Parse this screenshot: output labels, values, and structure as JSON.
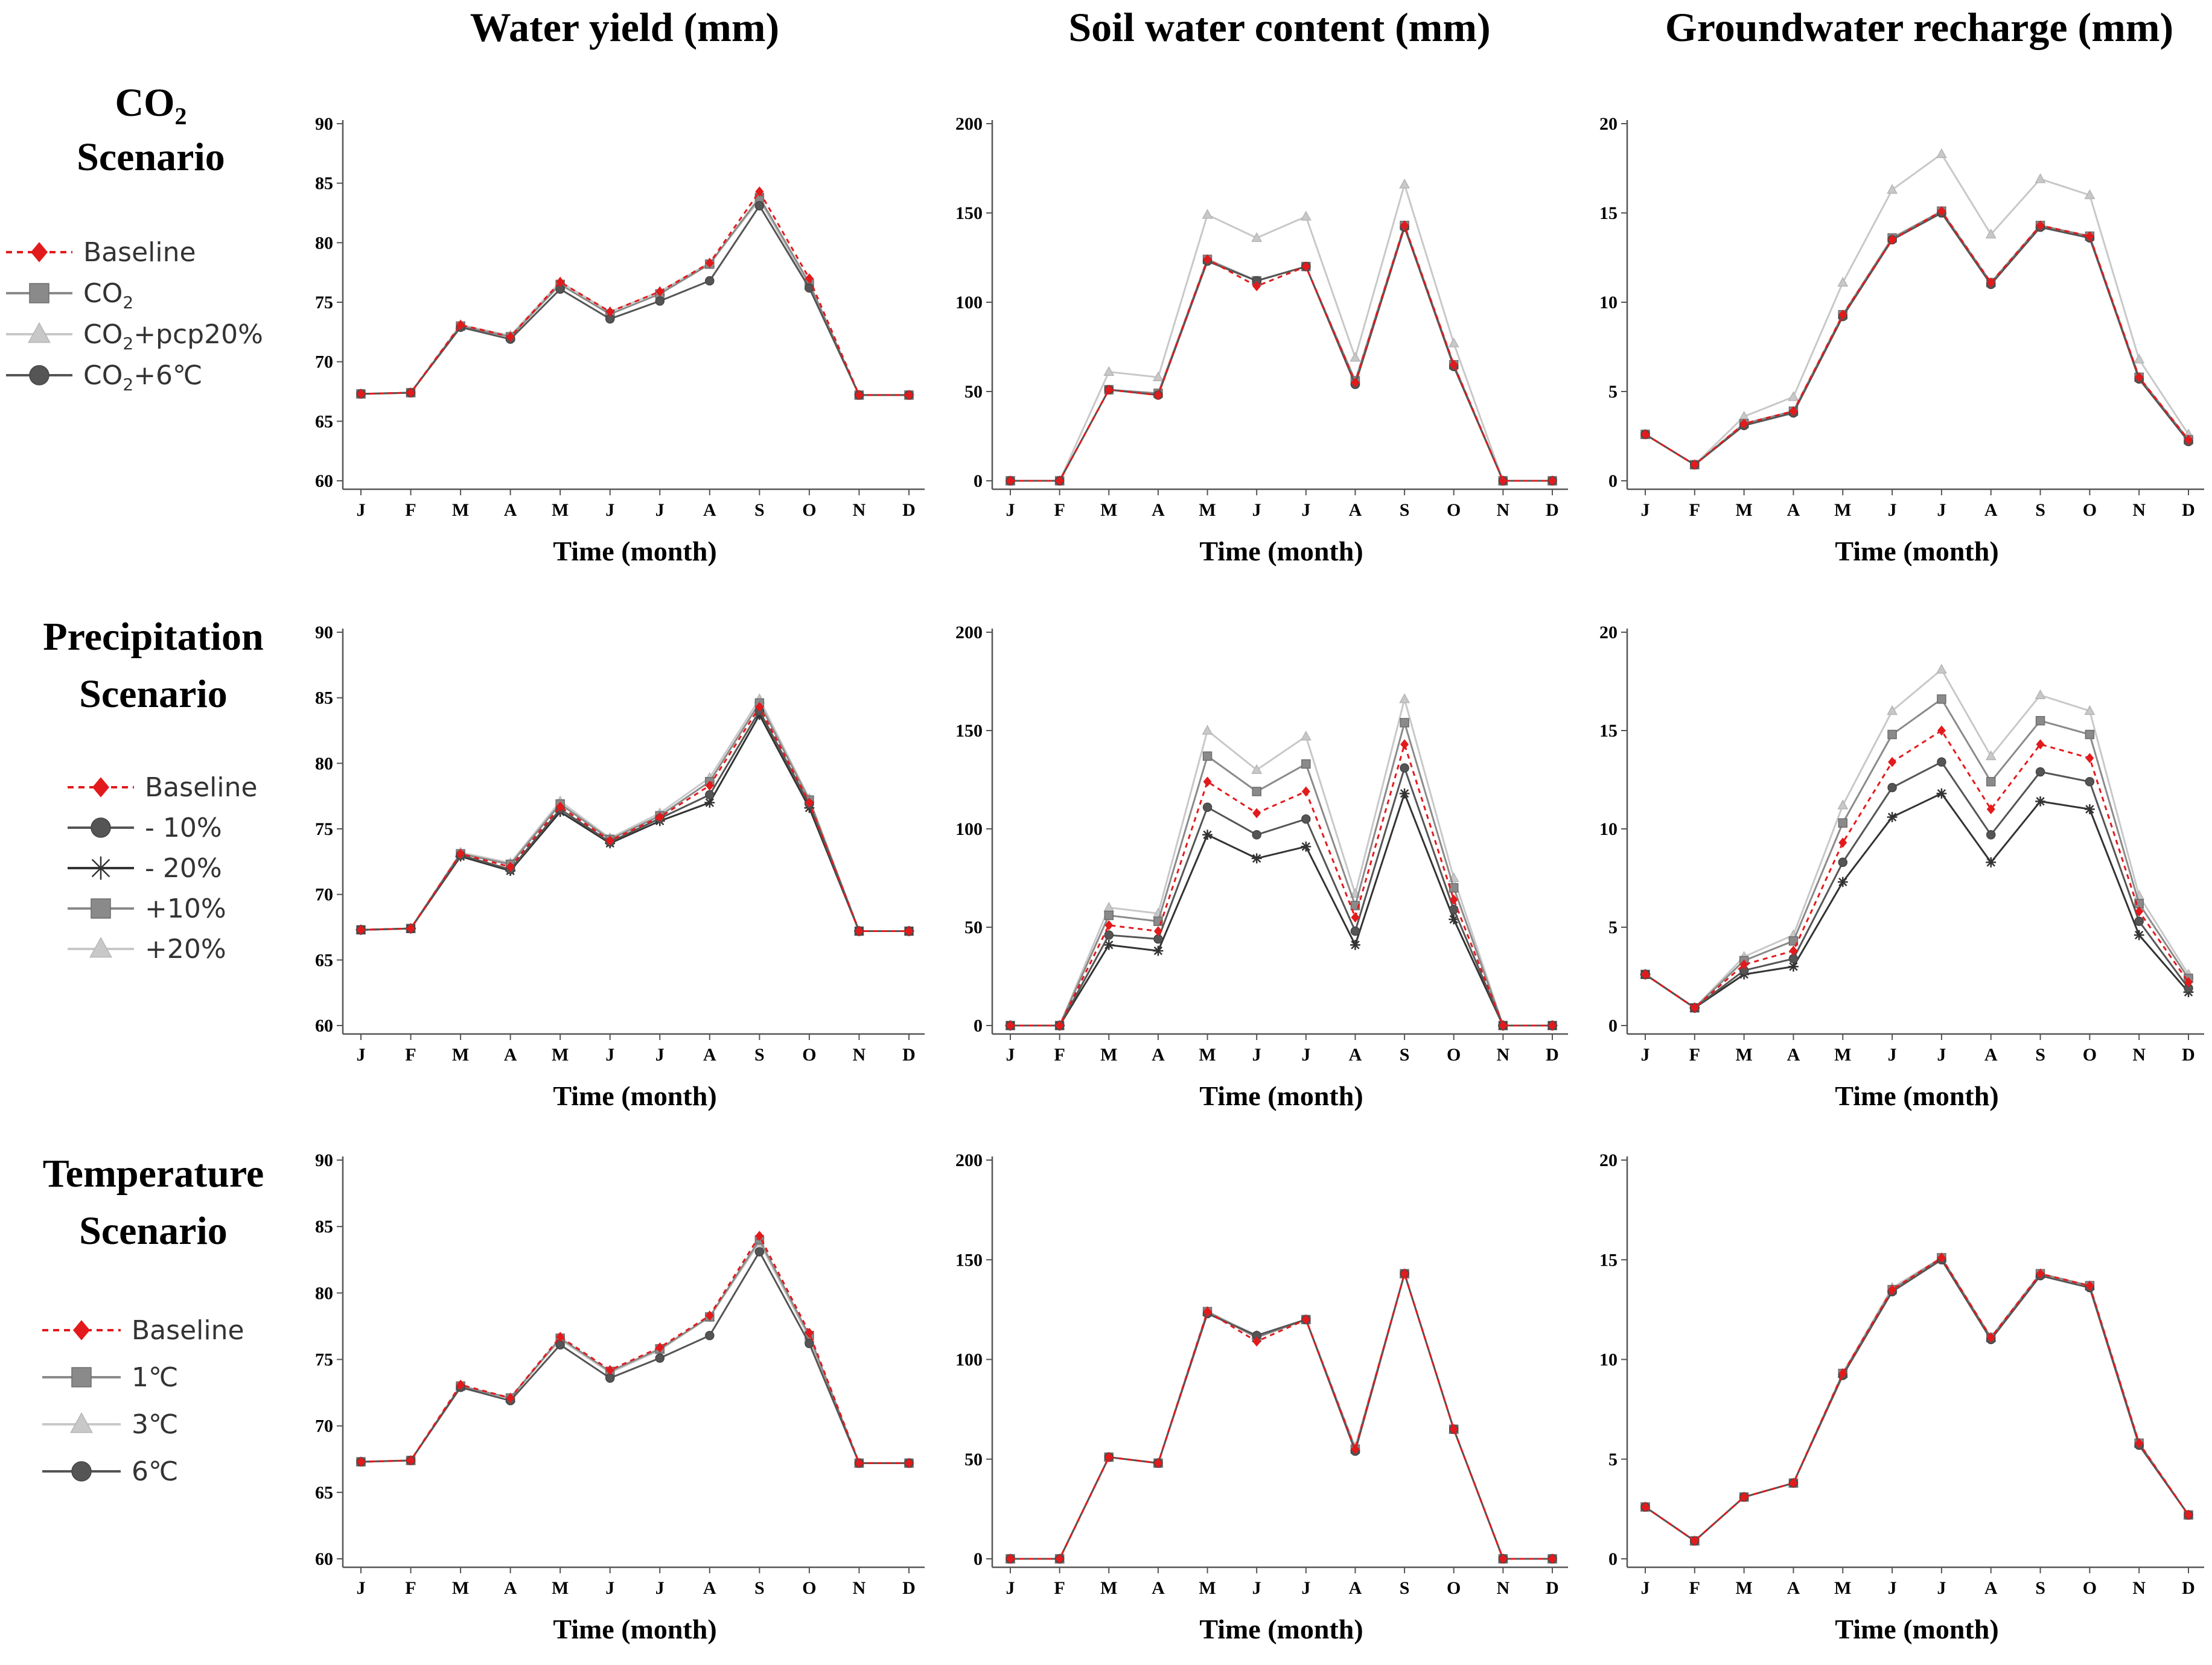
{
  "column_titles": [
    "Water yield (mm)",
    "Soil water content (mm)",
    "Groundwater recharge (mm)"
  ],
  "row_titles": [
    {
      "line1": "CO",
      "sub": "2",
      "line2": "Scenario"
    },
    {
      "line1": "Precipitation",
      "sub": "",
      "line2": "Scenario"
    },
    {
      "line1": "Temperature",
      "sub": "",
      "line2": "Scenario"
    }
  ],
  "legends": [
    [
      {
        "label": "Baseline",
        "sub": "",
        "tail": "",
        "style": "baseline"
      },
      {
        "label": "CO",
        "sub": "2",
        "tail": "",
        "style": "square"
      },
      {
        "label": "CO",
        "sub": "2",
        "tail": "+pcp20%",
        "style": "triangle"
      },
      {
        "label": "CO",
        "sub": "2",
        "tail": "+6℃",
        "style": "circle"
      }
    ],
    [
      {
        "label": "Baseline",
        "sub": "",
        "tail": "",
        "style": "baseline"
      },
      {
        "label": "- 10%",
        "sub": "",
        "tail": "",
        "style": "circle"
      },
      {
        "label": "- 20%",
        "sub": "",
        "tail": "",
        "style": "star"
      },
      {
        "label": "+10%",
        "sub": "",
        "tail": "",
        "style": "square"
      },
      {
        "label": "+20%",
        "sub": "",
        "tail": "",
        "style": "triangle"
      }
    ],
    [
      {
        "label": "Baseline",
        "sub": "",
        "tail": "",
        "style": "baseline"
      },
      {
        "label": "1℃",
        "sub": "",
        "tail": "",
        "style": "square"
      },
      {
        "label": "3℃",
        "sub": "",
        "tail": "",
        "style": "triangle"
      },
      {
        "label": "6℃",
        "sub": "",
        "tail": "",
        "style": "circle"
      }
    ]
  ],
  "colors": {
    "baseline": "#e31a1c",
    "square": "#8a8a8a",
    "triangle": "#c8c8c8",
    "circle": "#555555",
    "star": "#333333",
    "axis": "#555555"
  },
  "chart_data": [
    {
      "type": "line",
      "row": 0,
      "col": 0,
      "xlabel": "Time (month)",
      "ylabel": "Water yield (mm)",
      "categories": [
        "J",
        "F",
        "M",
        "A",
        "M",
        "J",
        "J",
        "A",
        "S",
        "O",
        "N",
        "D"
      ],
      "ylim": [
        60,
        90
      ],
      "yticks": [
        60,
        65,
        70,
        75,
        80,
        85,
        90
      ],
      "series": [
        {
          "name": "CO2+pcp20%",
          "style": "triangle",
          "values": [
            67.3,
            67.4,
            73.1,
            72.2,
            76.7,
            74.2,
            75.9,
            78.3,
            83.6,
            76.4,
            67.2,
            67.2
          ]
        },
        {
          "name": "CO2",
          "style": "square",
          "values": [
            67.3,
            67.4,
            73.0,
            72.1,
            76.5,
            74.0,
            75.7,
            78.2,
            83.8,
            76.6,
            67.2,
            67.2
          ]
        },
        {
          "name": "CO2+6℃",
          "style": "circle",
          "values": [
            67.3,
            67.4,
            72.9,
            71.9,
            76.1,
            73.6,
            75.1,
            76.8,
            83.1,
            76.2,
            67.2,
            67.2
          ]
        },
        {
          "name": "Baseline",
          "style": "baseline",
          "values": [
            67.3,
            67.4,
            73.1,
            72.1,
            76.7,
            74.2,
            75.9,
            78.3,
            84.3,
            77.0,
            67.2,
            67.2
          ]
        }
      ]
    },
    {
      "type": "line",
      "row": 0,
      "col": 1,
      "xlabel": "Time (month)",
      "ylabel": "Soil water content (mm)",
      "categories": [
        "J",
        "F",
        "M",
        "A",
        "M",
        "J",
        "J",
        "A",
        "S",
        "O",
        "N",
        "D"
      ],
      "ylim": [
        0,
        200
      ],
      "yticks": [
        0,
        50,
        100,
        150,
        200
      ],
      "series": [
        {
          "name": "CO2+pcp20%",
          "style": "triangle",
          "values": [
            0,
            0,
            61,
            58,
            149,
            136,
            148,
            69,
            166,
            77,
            0,
            0
          ]
        },
        {
          "name": "CO2",
          "style": "square",
          "values": [
            0,
            0,
            51,
            49,
            124,
            112,
            120,
            56,
            143,
            65,
            0,
            0
          ]
        },
        {
          "name": "CO2+6℃",
          "style": "circle",
          "values": [
            0,
            0,
            51,
            48,
            123,
            112,
            120,
            54,
            142,
            64,
            0,
            0
          ]
        },
        {
          "name": "Baseline",
          "style": "baseline",
          "values": [
            0,
            0,
            51,
            48,
            124,
            109,
            120,
            55,
            143,
            65,
            0,
            0
          ]
        }
      ]
    },
    {
      "type": "line",
      "row": 0,
      "col": 2,
      "xlabel": "Time (month)",
      "ylabel": "Groundwater recharge (mm)",
      "categories": [
        "J",
        "F",
        "M",
        "A",
        "M",
        "J",
        "J",
        "A",
        "S",
        "O",
        "N",
        "D"
      ],
      "ylim": [
        0,
        20
      ],
      "yticks": [
        0,
        5,
        10,
        15,
        20
      ],
      "series": [
        {
          "name": "CO2+pcp20%",
          "style": "triangle",
          "values": [
            2.6,
            0.9,
            3.6,
            4.7,
            11.1,
            16.3,
            18.3,
            13.8,
            16.9,
            16.0,
            6.8,
            2.6
          ]
        },
        {
          "name": "CO2",
          "style": "square",
          "values": [
            2.6,
            0.9,
            3.2,
            3.9,
            9.3,
            13.6,
            15.1,
            11.1,
            14.3,
            13.7,
            5.8,
            2.3
          ]
        },
        {
          "name": "CO2+6℃",
          "style": "circle",
          "values": [
            2.6,
            0.9,
            3.1,
            3.8,
            9.2,
            13.5,
            15.0,
            11.0,
            14.2,
            13.6,
            5.7,
            2.2
          ]
        },
        {
          "name": "Baseline",
          "style": "baseline",
          "values": [
            2.6,
            0.9,
            3.2,
            3.9,
            9.3,
            13.5,
            15.1,
            11.1,
            14.3,
            13.7,
            5.8,
            2.3
          ]
        }
      ]
    },
    {
      "type": "line",
      "row": 1,
      "col": 0,
      "xlabel": "Time (month)",
      "ylabel": "Water yield (mm)",
      "categories": [
        "J",
        "F",
        "M",
        "A",
        "M",
        "J",
        "J",
        "A",
        "S",
        "O",
        "N",
        "D"
      ],
      "ylim": [
        60,
        90
      ],
      "yticks": [
        60,
        65,
        70,
        75,
        80,
        85,
        90
      ],
      "series": [
        {
          "name": "+20%",
          "style": "triangle",
          "values": [
            67.3,
            67.4,
            73.2,
            72.4,
            77.1,
            74.3,
            76.2,
            78.9,
            84.9,
            77.3,
            67.2,
            67.2
          ]
        },
        {
          "name": "+10%",
          "style": "square",
          "values": [
            67.3,
            67.4,
            73.1,
            72.3,
            76.9,
            74.2,
            76.0,
            78.6,
            84.6,
            77.2,
            67.2,
            67.2
          ]
        },
        {
          "name": "- 20%",
          "style": "star",
          "values": [
            67.3,
            67.4,
            72.9,
            71.8,
            76.3,
            73.9,
            75.6,
            77.0,
            83.7,
            76.6,
            67.2,
            67.2
          ]
        },
        {
          "name": "- 10%",
          "style": "circle",
          "values": [
            67.3,
            67.4,
            73.0,
            71.9,
            76.5,
            74.0,
            75.8,
            77.6,
            84.0,
            76.9,
            67.2,
            67.2
          ]
        },
        {
          "name": "Baseline",
          "style": "baseline",
          "values": [
            67.3,
            67.4,
            73.1,
            72.1,
            76.7,
            74.1,
            75.9,
            78.3,
            84.3,
            77.0,
            67.2,
            67.2
          ]
        }
      ]
    },
    {
      "type": "line",
      "row": 1,
      "col": 1,
      "xlabel": "Time (month)",
      "ylabel": "Soil water content (mm)",
      "categories": [
        "J",
        "F",
        "M",
        "A",
        "M",
        "J",
        "J",
        "A",
        "S",
        "O",
        "N",
        "D"
      ],
      "ylim": [
        0,
        200
      ],
      "yticks": [
        0,
        50,
        100,
        150,
        200
      ],
      "series": [
        {
          "name": "+20%",
          "style": "triangle",
          "values": [
            0,
            0,
            60,
            57,
            150,
            130,
            147,
            67,
            166,
            75,
            0,
            0
          ]
        },
        {
          "name": "+10%",
          "style": "square",
          "values": [
            0,
            0,
            56,
            53,
            137,
            119,
            133,
            61,
            154,
            70,
            0,
            0
          ]
        },
        {
          "name": "- 20%",
          "style": "star",
          "values": [
            0,
            0,
            41,
            38,
            97,
            85,
            91,
            41,
            118,
            54,
            0,
            0
          ]
        },
        {
          "name": "- 10%",
          "style": "circle",
          "values": [
            0,
            0,
            46,
            44,
            111,
            97,
            105,
            48,
            131,
            59,
            0,
            0
          ]
        },
        {
          "name": "Baseline",
          "style": "baseline",
          "values": [
            0,
            0,
            51,
            48,
            124,
            108,
            119,
            55,
            143,
            64,
            0,
            0
          ]
        }
      ]
    },
    {
      "type": "line",
      "row": 1,
      "col": 2,
      "xlabel": "Time (month)",
      "ylabel": "Groundwater recharge (mm)",
      "categories": [
        "J",
        "F",
        "M",
        "A",
        "M",
        "J",
        "J",
        "A",
        "S",
        "O",
        "N",
        "D"
      ],
      "ylim": [
        0,
        20
      ],
      "yticks": [
        0,
        5,
        10,
        15,
        20
      ],
      "series": [
        {
          "name": "+20%",
          "style": "triangle",
          "values": [
            2.6,
            0.9,
            3.5,
            4.6,
            11.2,
            16.0,
            18.1,
            13.7,
            16.8,
            16.0,
            6.6,
            2.6
          ]
        },
        {
          "name": "+10%",
          "style": "square",
          "values": [
            2.6,
            0.9,
            3.3,
            4.3,
            10.3,
            14.8,
            16.6,
            12.4,
            15.5,
            14.8,
            6.2,
            2.4
          ]
        },
        {
          "name": "- 20%",
          "style": "star",
          "values": [
            2.6,
            0.9,
            2.6,
            3.0,
            7.3,
            10.6,
            11.8,
            8.3,
            11.4,
            11.0,
            4.6,
            1.7
          ]
        },
        {
          "name": "- 10%",
          "style": "circle",
          "values": [
            2.6,
            0.9,
            2.8,
            3.4,
            8.3,
            12.1,
            13.4,
            9.7,
            12.9,
            12.4,
            5.3,
            1.9
          ]
        },
        {
          "name": "Baseline",
          "style": "baseline",
          "values": [
            2.6,
            0.9,
            3.1,
            3.8,
            9.3,
            13.4,
            15.0,
            11.0,
            14.3,
            13.6,
            5.8,
            2.2
          ]
        }
      ]
    },
    {
      "type": "line",
      "row": 2,
      "col": 0,
      "xlabel": "Time (month)",
      "ylabel": "Water yield (mm)",
      "categories": [
        "J",
        "F",
        "M",
        "A",
        "M",
        "J",
        "J",
        "A",
        "S",
        "O",
        "N",
        "D"
      ],
      "ylim": [
        60,
        90
      ],
      "yticks": [
        60,
        65,
        70,
        75,
        80,
        85,
        90
      ],
      "series": [
        {
          "name": "3℃",
          "style": "triangle",
          "values": [
            67.3,
            67.4,
            73.0,
            72.1,
            76.5,
            74.0,
            75.7,
            78.2,
            83.8,
            76.6,
            67.2,
            67.2
          ]
        },
        {
          "name": "1℃",
          "style": "square",
          "values": [
            67.3,
            67.4,
            73.0,
            72.1,
            76.6,
            74.1,
            75.8,
            78.2,
            84.0,
            76.8,
            67.2,
            67.2
          ]
        },
        {
          "name": "6℃",
          "style": "circle",
          "values": [
            67.3,
            67.4,
            72.9,
            71.9,
            76.1,
            73.6,
            75.1,
            76.8,
            83.1,
            76.2,
            67.2,
            67.2
          ]
        },
        {
          "name": "Baseline",
          "style": "baseline",
          "values": [
            67.3,
            67.4,
            73.1,
            72.1,
            76.7,
            74.2,
            75.9,
            78.3,
            84.3,
            77.0,
            67.2,
            67.2
          ]
        }
      ]
    },
    {
      "type": "line",
      "row": 2,
      "col": 1,
      "xlabel": "Time (month)",
      "ylabel": "Soil water content (mm)",
      "categories": [
        "J",
        "F",
        "M",
        "A",
        "M",
        "J",
        "J",
        "A",
        "S",
        "O",
        "N",
        "D"
      ],
      "ylim": [
        0,
        200
      ],
      "yticks": [
        0,
        50,
        100,
        150,
        200
      ],
      "series": [
        {
          "name": "3℃",
          "style": "triangle",
          "values": [
            0,
            0,
            51,
            48,
            124,
            112,
            120,
            56,
            143,
            65,
            0,
            0
          ]
        },
        {
          "name": "1℃",
          "style": "square",
          "values": [
            0,
            0,
            51,
            48,
            124,
            111,
            120,
            55,
            143,
            65,
            0,
            0
          ]
        },
        {
          "name": "6℃",
          "style": "circle",
          "values": [
            0,
            0,
            51,
            48,
            123,
            112,
            120,
            54,
            143,
            65,
            0,
            0
          ]
        },
        {
          "name": "Baseline",
          "style": "baseline",
          "values": [
            0,
            0,
            51,
            48,
            124,
            109,
            120,
            55,
            143,
            65,
            0,
            0
          ]
        }
      ]
    },
    {
      "type": "line",
      "row": 2,
      "col": 2,
      "xlabel": "Time (month)",
      "ylabel": "Groundwater recharge (mm)",
      "categories": [
        "J",
        "F",
        "M",
        "A",
        "M",
        "J",
        "J",
        "A",
        "S",
        "O",
        "N",
        "D"
      ],
      "ylim": [
        0,
        20
      ],
      "yticks": [
        0,
        5,
        10,
        15,
        20
      ],
      "series": [
        {
          "name": "3℃",
          "style": "triangle",
          "values": [
            2.6,
            0.9,
            3.1,
            3.8,
            9.3,
            13.6,
            15.1,
            11.1,
            14.3,
            13.7,
            5.8,
            2.2
          ]
        },
        {
          "name": "1℃",
          "style": "square",
          "values": [
            2.6,
            0.9,
            3.1,
            3.8,
            9.3,
            13.5,
            15.1,
            11.1,
            14.3,
            13.7,
            5.8,
            2.2
          ]
        },
        {
          "name": "6℃",
          "style": "circle",
          "values": [
            2.6,
            0.9,
            3.1,
            3.8,
            9.2,
            13.4,
            15.0,
            11.0,
            14.2,
            13.6,
            5.7,
            2.2
          ]
        },
        {
          "name": "Baseline",
          "style": "baseline",
          "values": [
            2.6,
            0.9,
            3.1,
            3.8,
            9.3,
            13.5,
            15.1,
            11.1,
            14.3,
            13.7,
            5.8,
            2.2
          ]
        }
      ]
    }
  ]
}
